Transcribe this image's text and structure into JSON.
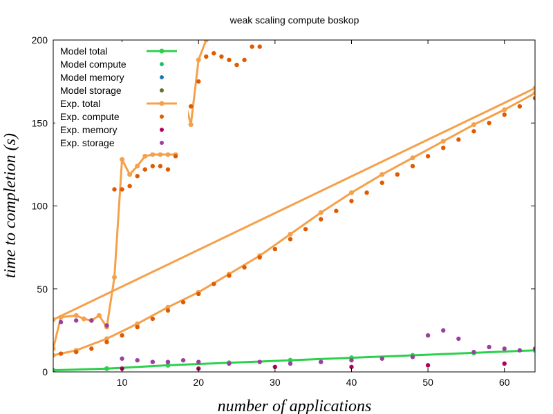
{
  "chart_data": {
    "type": "scatter",
    "title": "weak scaling compute boskop",
    "xlabel": "number of applications",
    "ylabel": "time to completion (s)",
    "xlim": [
      1,
      64
    ],
    "ylim": [
      0,
      200
    ],
    "xticks": [
      10,
      20,
      30,
      40,
      50,
      60
    ],
    "yticks": [
      0,
      50,
      100,
      150,
      200
    ],
    "grid": false,
    "legend_position": "top-left",
    "legend": [
      {
        "label": "Model  total",
        "color": "#2bd04b",
        "style": "line"
      },
      {
        "label": "Model  compute",
        "color": "#1dbf73",
        "style": "dot"
      },
      {
        "label": "Model  memory",
        "color": "#1f77b4",
        "style": "dot"
      },
      {
        "label": "Model  storage",
        "color": "#6b6b2a",
        "style": "dot"
      },
      {
        "label": "Exp.  total",
        "color": "#f5a04a",
        "style": "line"
      },
      {
        "label": "Exp.  compute",
        "color": "#e05a00",
        "style": "dot"
      },
      {
        "label": "Exp.  memory",
        "color": "#b3005a",
        "style": "dot"
      },
      {
        "label": "Exp.  storage",
        "color": "#9b3fa0",
        "style": "dot"
      }
    ],
    "series": [
      {
        "name": "Exp.  total (linear)",
        "kind": "line",
        "color": "#f5a04a",
        "x": [
          1,
          64
        ],
        "y": [
          31.5,
          171
        ]
      },
      {
        "name": "Exp.  total",
        "kind": "line",
        "color": "#f5a04a",
        "x": [
          1,
          2,
          4,
          5,
          6,
          7,
          8,
          9,
          10,
          11,
          12,
          13,
          14,
          15,
          16,
          17,
          18,
          19,
          20,
          21
        ],
        "y": [
          14,
          33,
          34,
          32,
          31,
          34,
          27,
          57,
          128,
          119,
          124,
          130,
          131,
          131,
          131,
          131,
          167,
          149,
          188,
          200
        ]
      },
      {
        "name": "Exp.  total (lower)",
        "kind": "line",
        "color": "#f5a04a",
        "x": [
          1,
          4,
          8,
          12,
          16,
          20,
          24,
          28,
          32,
          36,
          40,
          44,
          48,
          52,
          56,
          60,
          64
        ],
        "y": [
          10,
          13,
          20,
          29,
          39,
          48,
          59,
          70,
          83,
          96,
          108,
          119,
          129,
          139,
          149,
          158,
          168
        ]
      },
      {
        "name": "Model  total",
        "kind": "line",
        "color": "#2bd04b",
        "x": [
          1,
          8,
          16,
          24,
          32,
          40,
          48,
          56,
          64
        ],
        "y": [
          1,
          2,
          4,
          5.5,
          7,
          8.5,
          10,
          11.5,
          13
        ]
      },
      {
        "name": "Exp.  compute (upper)",
        "kind": "scatter",
        "color": "#e05a00",
        "x": [
          9,
          10,
          11,
          12,
          13,
          14,
          15,
          16,
          17,
          18,
          19,
          20,
          21,
          22,
          23,
          24,
          25,
          26,
          27,
          28
        ],
        "y": [
          110,
          110,
          112,
          118,
          122,
          124,
          124,
          122,
          130,
          145,
          160,
          175,
          190,
          192,
          190,
          188,
          185,
          188,
          196,
          196
        ]
      },
      {
        "name": "Exp.  compute (linear)",
        "kind": "scatter",
        "color": "#e05a00",
        "x": [
          2,
          4,
          6,
          8,
          10,
          12,
          14,
          16,
          18,
          20,
          22,
          24,
          26,
          28,
          30,
          32,
          34,
          36,
          38,
          40,
          42,
          44,
          46,
          48,
          50,
          52,
          54,
          56,
          58,
          60,
          62,
          64
        ],
        "y": [
          11,
          12,
          14,
          18,
          22,
          27,
          32,
          37,
          42,
          47,
          53,
          58,
          63,
          69,
          74,
          80,
          86,
          92,
          97,
          103,
          108,
          114,
          119,
          124,
          130,
          135,
          140,
          145,
          150,
          155,
          160,
          165
        ]
      },
      {
        "name": "Exp.  storage",
        "kind": "scatter",
        "color": "#9b3fa0",
        "x": [
          2,
          4,
          6,
          8,
          10,
          12,
          14,
          16,
          18,
          20,
          24,
          28,
          32,
          36,
          40,
          44,
          48,
          50,
          52,
          54,
          56,
          58,
          60,
          62,
          64
        ],
        "y": [
          30,
          31,
          31,
          28,
          8,
          7,
          6,
          6,
          7,
          6,
          5,
          6,
          5,
          6,
          7,
          8,
          9,
          22,
          25,
          20,
          12,
          15,
          14,
          13,
          14
        ]
      },
      {
        "name": "Exp.  memory",
        "kind": "scatter",
        "color": "#b3005a",
        "x": [
          10,
          20,
          30,
          40,
          50,
          60
        ],
        "y": [
          2,
          2,
          3,
          3,
          4,
          5
        ]
      }
    ]
  }
}
